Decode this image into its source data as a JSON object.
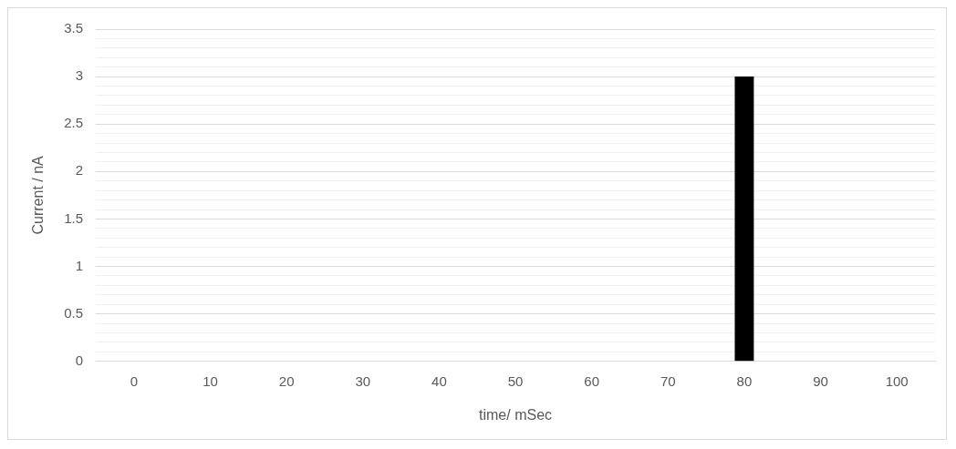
{
  "chart_data": {
    "type": "bar",
    "xlabel": "time/ mSec",
    "ylabel": "Current / nA",
    "categories": [
      "0",
      "10",
      "20",
      "30",
      "40",
      "50",
      "60",
      "70",
      "80",
      "90",
      "100"
    ],
    "values": [
      0,
      0,
      0,
      0,
      0,
      0,
      0,
      0,
      3,
      0,
      0
    ],
    "color": "#000000",
    "ylim": [
      0,
      3.5
    ],
    "yticks": [
      0,
      {
        "value": 0.1,
        "label": null
      },
      {
        "value": 0.2,
        "label": null
      },
      {
        "value": 0.3,
        "label": null
      },
      {
        "value": 0.4,
        "label": null
      },
      0.5,
      {
        "value": 0.6,
        "label": null
      },
      {
        "value": 0.7,
        "label": null
      },
      {
        "value": 0.8,
        "label": null
      },
      {
        "value": 0.9,
        "label": null
      },
      1,
      {
        "value": 1.1,
        "label": null
      },
      {
        "value": 1.2,
        "label": null
      },
      {
        "value": 1.3,
        "label": null
      },
      {
        "value": 1.4,
        "label": null
      },
      1.5,
      {
        "value": 1.6,
        "label": null
      },
      {
        "value": 1.7,
        "label": null
      },
      {
        "value": 1.8,
        "label": null
      },
      {
        "value": 1.9,
        "label": null
      },
      2,
      {
        "value": 2.1,
        "label": null
      },
      {
        "value": 2.2,
        "label": null
      },
      {
        "value": 2.3,
        "label": null
      },
      {
        "value": 2.4,
        "label": null
      },
      2.5,
      {
        "value": 2.6,
        "label": null
      },
      {
        "value": 2.7,
        "label": null
      },
      {
        "value": 2.8,
        "label": null
      },
      {
        "value": 2.9,
        "label": null
      },
      3,
      {
        "value": 3.1,
        "label": null
      },
      {
        "value": 3.2,
        "label": null
      },
      {
        "value": 3.3,
        "label": null
      },
      {
        "value": 3.4,
        "label": null
      },
      3.5
    ],
    "grid": "y",
    "legend": false
  }
}
